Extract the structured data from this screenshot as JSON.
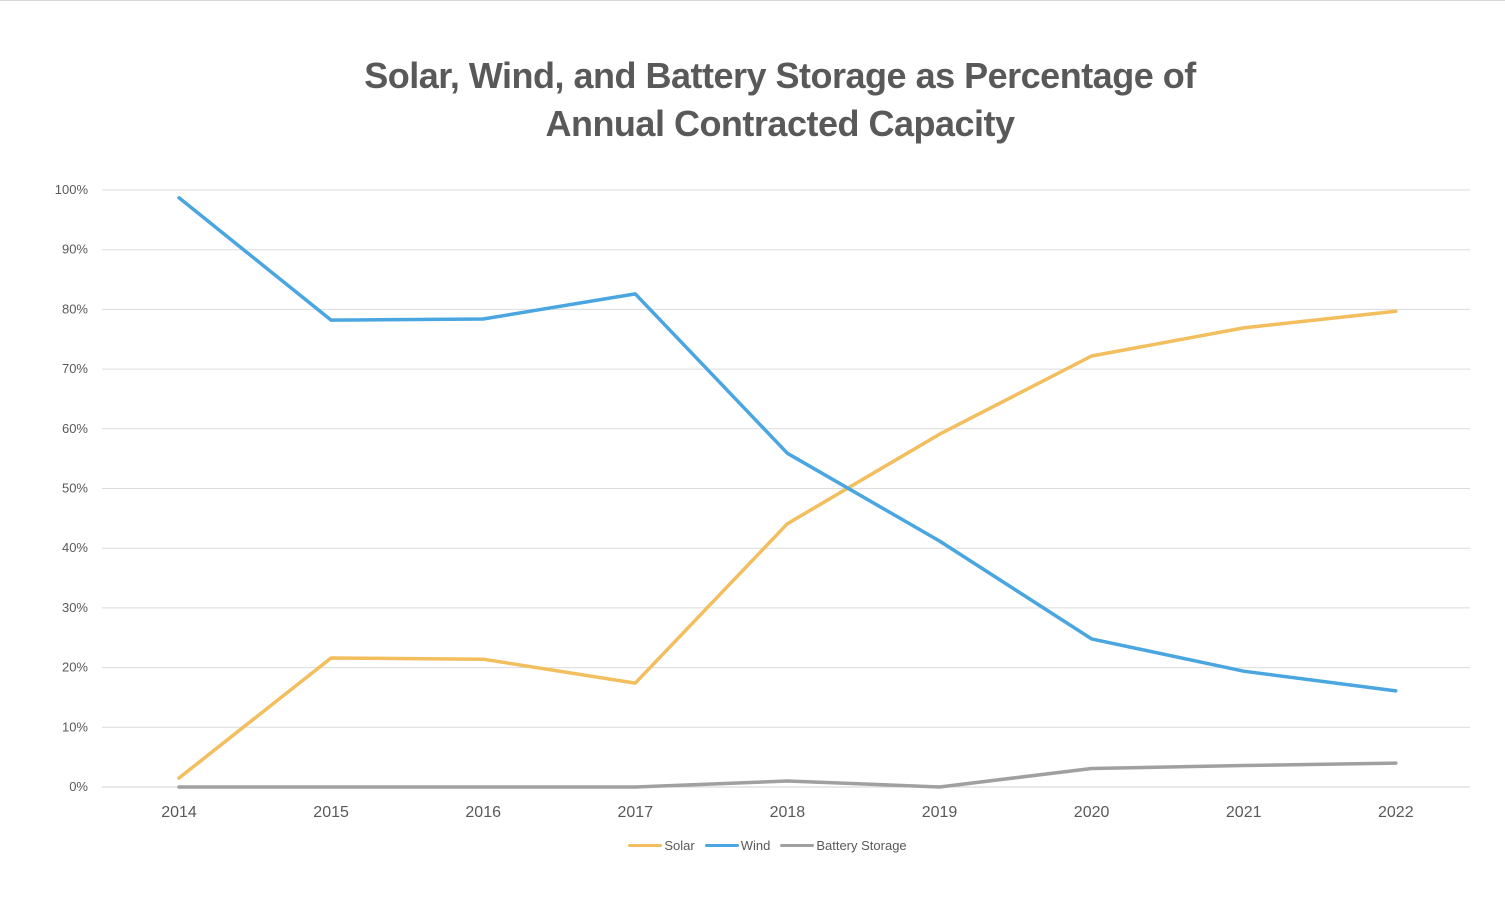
{
  "chart_data": {
    "type": "line",
    "title": [
      "Solar, Wind, and Battery Storage as Percentage of",
      "Annual Contracted Capacity"
    ],
    "xlabel": "",
    "ylabel": "",
    "categories": [
      "2014",
      "2015",
      "2016",
      "2017",
      "2018",
      "2019",
      "2020",
      "2021",
      "2022"
    ],
    "ylim": [
      0,
      100
    ],
    "yticks": [
      0,
      10,
      20,
      30,
      40,
      50,
      60,
      70,
      80,
      90,
      100
    ],
    "ytick_labels": [
      "0%",
      "10%",
      "20%",
      "30%",
      "40%",
      "50%",
      "60%",
      "70%",
      "80%",
      "90%",
      "100%"
    ],
    "grid": true,
    "legend_position": "bottom-center",
    "series": [
      {
        "name": "Solar",
        "color": "#F2BE5E",
        "values": [
          1.5,
          21.6,
          21.4,
          17.4,
          44.1,
          59.1,
          72.2,
          76.9,
          79.7
        ]
      },
      {
        "name": "Wind",
        "color": "#4AA6E0",
        "values": [
          98.7,
          78.2,
          78.4,
          82.6,
          55.9,
          41.2,
          24.8,
          19.4,
          16.1
        ]
      },
      {
        "name": "Battery Storage",
        "color": "#A0A0A0",
        "values": [
          0,
          0,
          0,
          0,
          1.0,
          0,
          3.1,
          3.6,
          4.0
        ]
      }
    ]
  }
}
